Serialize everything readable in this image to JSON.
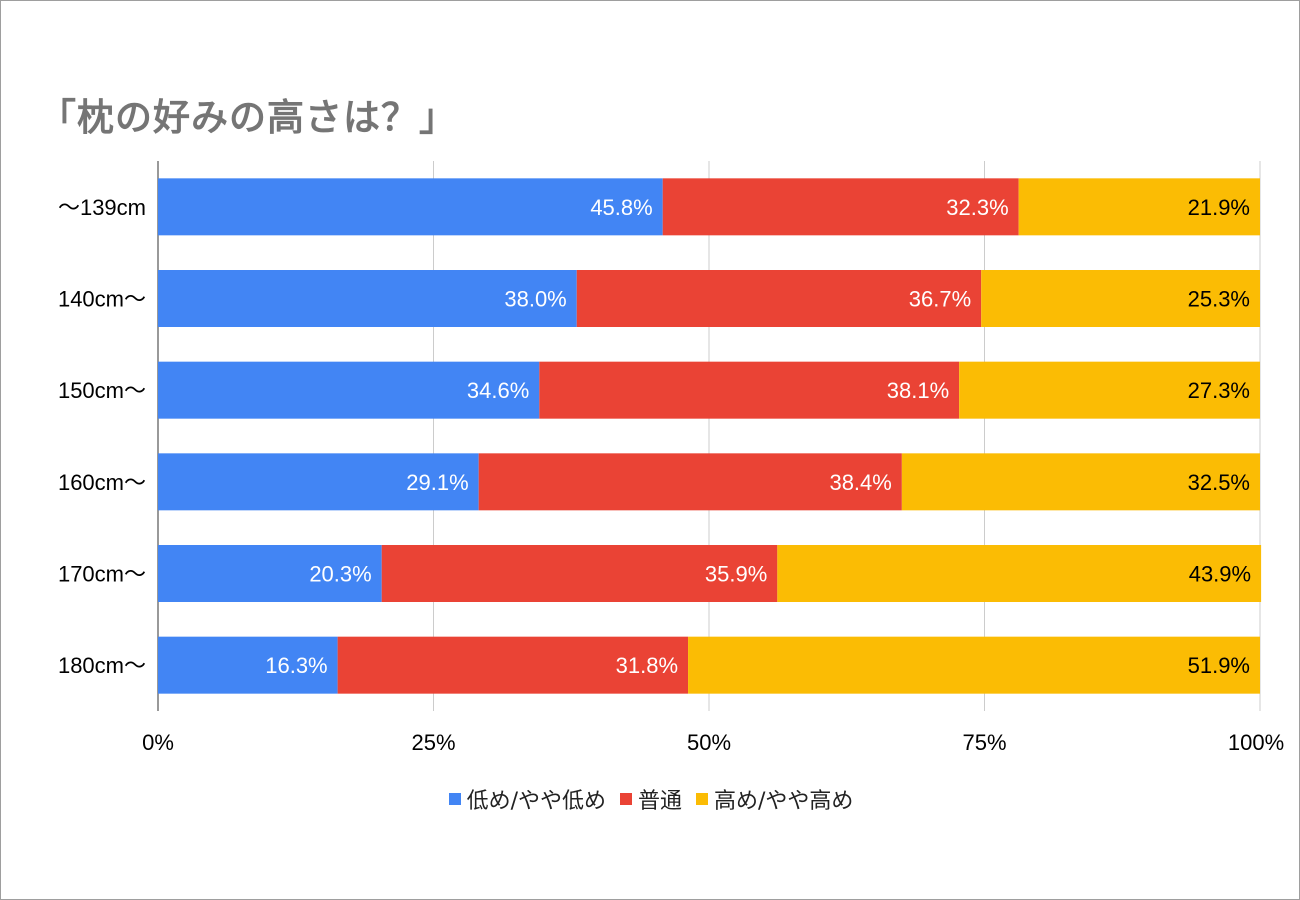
{
  "chart_data": {
    "type": "bar",
    "orientation": "horizontal",
    "stacked": "percent",
    "title": "「枕の好みの高さは？」",
    "categories": [
      "〜139cm",
      "140cm〜",
      "150cm〜",
      "160cm〜",
      "170cm〜",
      "180cm〜"
    ],
    "series": [
      {
        "name": "低め/やや低め",
        "color": "#4285f4",
        "label_color": "#ffffff",
        "values": [
          45.8,
          38.0,
          34.6,
          29.1,
          20.3,
          16.3
        ]
      },
      {
        "name": "普通",
        "color": "#ea4335",
        "label_color": "#ffffff",
        "values": [
          32.3,
          36.7,
          38.1,
          38.4,
          35.9,
          31.8
        ]
      },
      {
        "name": "高め/やや高め",
        "color": "#fbbc04",
        "label_color": "#000000",
        "values": [
          21.9,
          25.3,
          27.3,
          32.5,
          43.9,
          51.9
        ]
      }
    ],
    "xticks": [
      "0%",
      "25%",
      "50%",
      "75%",
      "100%"
    ],
    "xlim": [
      0,
      100
    ],
    "grid": true,
    "legend_position": "bottom"
  }
}
